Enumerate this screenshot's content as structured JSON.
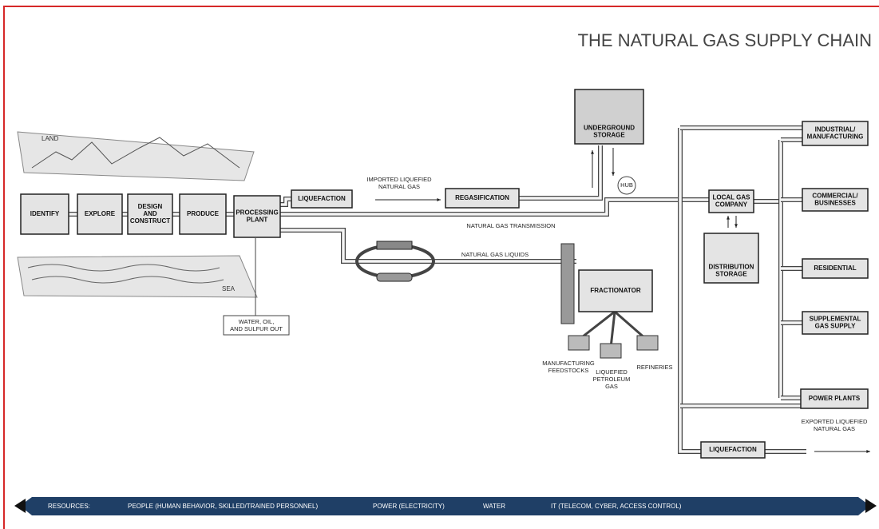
{
  "title": "THE NATURAL GAS SUPPLY CHAIN",
  "regions": {
    "land": "LAND",
    "sea": "SEA"
  },
  "nodes": [
    {
      "label": [
        "IDENTIFY"
      ]
    },
    {
      "label": [
        "EXPLORE"
      ]
    },
    {
      "label": [
        "DESIGN",
        "AND",
        "CONSTRUCT"
      ]
    },
    {
      "label": [
        "PRODUCE"
      ]
    },
    {
      "label": [
        "PROCESSING",
        "PLANT"
      ]
    },
    {
      "label": [
        "LIQUEFACTION"
      ]
    },
    {
      "label": [
        "REGASIFICATION"
      ]
    },
    {
      "label": [
        "UNDERGROUND",
        "STORAGE"
      ]
    },
    {
      "label": [
        "LOCAL GAS",
        "COMPANY"
      ]
    },
    {
      "label": [
        "DISTRIBUTION",
        "STORAGE"
      ]
    },
    {
      "label": [
        "FRACTIONATOR"
      ]
    },
    {
      "label": [
        "INDUSTRIAL/",
        "MANUFACTURING"
      ]
    },
    {
      "label": [
        "COMMERCIAL/",
        "BUSINESSES"
      ]
    },
    {
      "label": [
        "RESIDENTIAL"
      ]
    },
    {
      "label": [
        "SUPPLEMENTAL",
        "GAS SUPPLY"
      ]
    },
    {
      "label": [
        "POWER PLANTS"
      ]
    },
    {
      "label": [
        "LIQUEFACTION"
      ]
    }
  ],
  "hub": "HUB",
  "labels": [
    [
      "IMPORTED LIQUEFIED",
      "NATURAL GAS"
    ],
    [
      "NATURAL GAS TRANSMISSION"
    ],
    [
      "NATURAL GAS LIQUIDS"
    ],
    [
      "WATER, OIL,",
      "AND SULFUR OUT"
    ],
    [
      "MANUFACTURING",
      "FEEDSTOCKS"
    ],
    [
      "LIQUEFIED",
      "PETROLEUM",
      "GAS"
    ],
    [
      "REFINERIES"
    ],
    [
      "EXPORTED LIQUEFIED",
      "NATURAL GAS"
    ]
  ],
  "resources": {
    "heading": "RESOURCES:",
    "items": [
      "PEOPLE (HUMAN BEHAVIOR, SKILLED/TRAINED PERSONNEL)",
      "POWER (ELECTRICITY)",
      "WATER",
      "IT (TELECOM, CYBER, ACCESS CONTROL)"
    ]
  }
}
